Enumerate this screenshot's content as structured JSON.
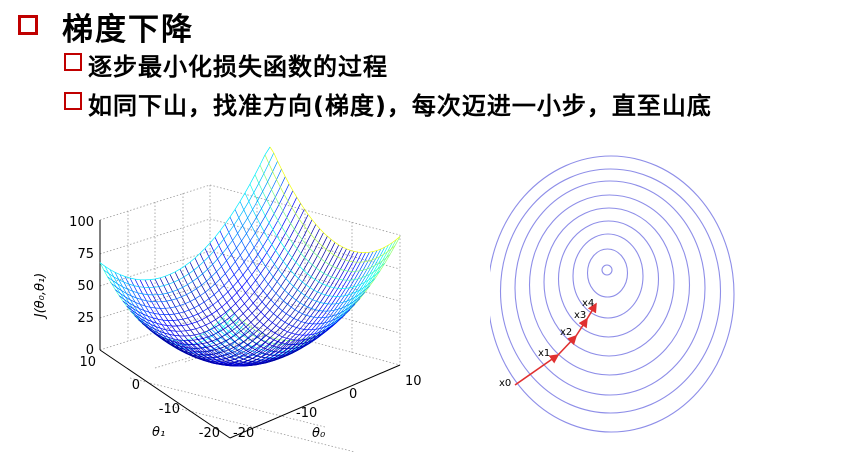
{
  "slide": {
    "title": "梯度下降",
    "bullets": [
      "逐步最小化损失函数的过程",
      "如同下山，找准方向(梯度)，每次迈进一小步，直至山底"
    ]
  },
  "surface_plot": {
    "z_label": "J(θ₀,θ₁)",
    "x_label": "θ₀",
    "y_label": "θ₁",
    "z_ticks": [
      "0",
      "25",
      "50",
      "75",
      "100"
    ],
    "x_ticks": [
      "-20",
      "-10",
      "0",
      "10"
    ],
    "y_ticks": [
      "-20",
      "-10",
      "0",
      "10"
    ]
  },
  "contour_plot": {
    "steps": [
      "x0",
      "x1",
      "x2",
      "x3",
      "x4"
    ],
    "colors": {
      "contour": "#8e8ee8",
      "path": "#e03030"
    }
  },
  "colors": {
    "bullet": "#c00000"
  }
}
